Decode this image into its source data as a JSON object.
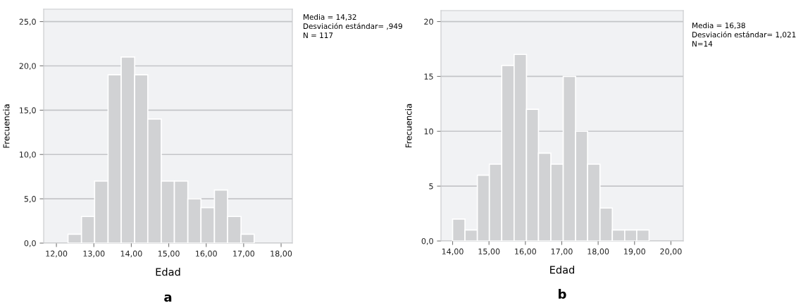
{
  "chart_data": [
    {
      "type": "histogram",
      "title": "a",
      "xlabel": "Edad",
      "ylabel": "Frecuencia",
      "color": "#d1d2d4",
      "grid": "y",
      "bins": [
        12.31,
        12.67,
        13.02,
        13.38,
        13.73,
        14.09,
        14.44,
        14.8,
        15.15,
        15.51,
        15.86,
        16.22,
        16.57,
        16.93,
        17.28
      ],
      "values": [
        1,
        3,
        7,
        19,
        21,
        19,
        14,
        7,
        7,
        5,
        4,
        6,
        3,
        1
      ],
      "xlim": [
        11.66,
        18.3
      ],
      "xticks": [
        {
          "value": 12,
          "label": "12,00"
        },
        {
          "value": 13,
          "label": "13,00"
        },
        {
          "value": 14,
          "label": "14,00"
        },
        {
          "value": 15,
          "label": "15,00"
        },
        {
          "value": 16,
          "label": "16,00"
        },
        {
          "value": 17,
          "label": "17,00"
        },
        {
          "value": 18,
          "label": "18,00"
        }
      ],
      "ylim": [
        0,
        26.4
      ],
      "yticks": [
        {
          "value": 0,
          "label": "0,0"
        },
        {
          "value": 5,
          "label": "5,0"
        },
        {
          "value": 10,
          "label": "10,0"
        },
        {
          "value": 15,
          "label": "15,0"
        },
        {
          "value": 20,
          "label": "20,0"
        },
        {
          "value": 25,
          "label": "25,0"
        }
      ],
      "annotations": [
        "Media = 14,32",
        "Desviación estándar= ,949",
        "N = 117"
      ]
    },
    {
      "type": "histogram",
      "title": "b",
      "xlabel": "Edad",
      "ylabel": "Frecuencia",
      "color": "#d1d2d4",
      "grid": "y",
      "bins": [
        14.0,
        14.34,
        14.68,
        15.01,
        15.35,
        15.69,
        16.03,
        16.36,
        16.7,
        17.04,
        17.38,
        17.71,
        18.05,
        18.39,
        18.73,
        19.06,
        19.4
      ],
      "values": [
        2,
        1,
        6,
        7,
        16,
        17,
        12,
        8,
        7,
        15,
        10,
        7,
        3,
        1,
        1,
        1
      ],
      "xlim": [
        13.68,
        20.34
      ],
      "xticks": [
        {
          "value": 14,
          "label": "14,00"
        },
        {
          "value": 15,
          "label": "15,00"
        },
        {
          "value": 16,
          "label": "16,00"
        },
        {
          "value": 17,
          "label": "17,00"
        },
        {
          "value": 18,
          "label": "18,00"
        },
        {
          "value": 19,
          "label": "19,00"
        },
        {
          "value": 20,
          "label": "20,00"
        }
      ],
      "ylim": [
        0,
        21
      ],
      "yticks": [
        {
          "value": 0,
          "label": "0,0"
        },
        5,
        10,
        15,
        20
      ],
      "annotations": [
        "Media = 16,38",
        "Desviación estándar= 1,021",
        "N=14"
      ]
    }
  ]
}
